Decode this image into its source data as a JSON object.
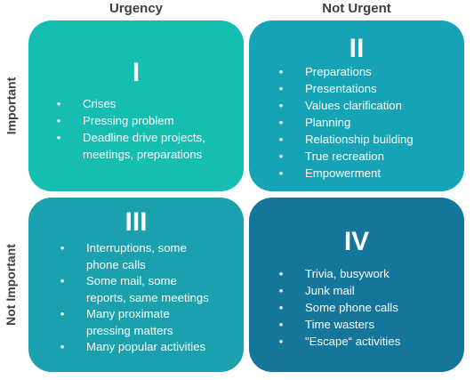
{
  "columns": {
    "urgent": "Urgency",
    "not_urgent": "Not Urgent"
  },
  "rows": {
    "important": "Important",
    "not_important": "Not Important"
  },
  "quadrants": [
    {
      "numeral": "I",
      "color": "#16bdb1",
      "lines": [
        "Crises",
        "Pressing problem",
        "Deadline drive projects,",
        "meetings, preparations"
      ],
      "bullets": [
        true,
        true,
        true,
        false
      ]
    },
    {
      "numeral": "II",
      "color": "#17a3b6",
      "lines": [
        "Preparations",
        "Presentations",
        "Values clarification",
        "Planning",
        "Relationship building",
        "True recreation",
        "Empowerment"
      ],
      "bullets": [
        true,
        true,
        true,
        true,
        true,
        true,
        true
      ]
    },
    {
      "numeral": "III",
      "color": "#1ba1ad",
      "lines": [
        "Interruptions, some",
        "phone calls",
        "Some mail, some",
        "reports, same meetings",
        "Many proximate",
        "pressing matters",
        "Many popular activities"
      ],
      "bullets": [
        true,
        false,
        true,
        false,
        true,
        false,
        true
      ]
    },
    {
      "numeral": "IV",
      "color": "#13769a",
      "lines": [
        "Trivia, busywork",
        "Junk mail",
        "Some phone calls",
        "Time wasters",
        "\"Escape“ activities"
      ],
      "bullets": [
        true,
        true,
        true,
        true,
        true
      ]
    }
  ],
  "bullet_glyph": "•"
}
